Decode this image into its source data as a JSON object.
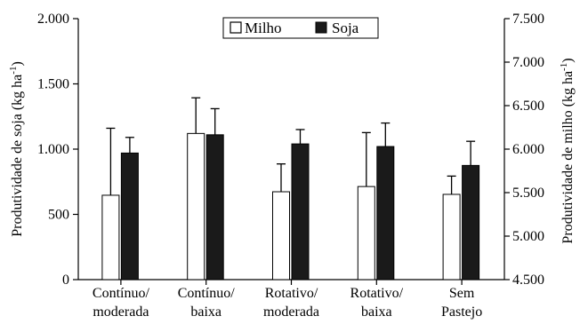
{
  "chart_data": {
    "type": "bar",
    "categories": [
      [
        "Contínuo/",
        "moderada"
      ],
      [
        "Contínuo/",
        "baixa"
      ],
      [
        "Rotativo/",
        "moderada"
      ],
      [
        "Rotativo/",
        "baixa"
      ],
      [
        "Sem",
        "Pastejo"
      ]
    ],
    "series": [
      {
        "name": "Milho",
        "axis": "right",
        "color": "#ffffff",
        "values": [
          5470,
          6180,
          5510,
          5570,
          5480
        ],
        "errors": [
          770,
          410,
          320,
          620,
          210
        ]
      },
      {
        "name": "Soja",
        "axis": "left",
        "color": "#1a1a1a",
        "values": [
          970,
          1110,
          1040,
          1020,
          875
        ],
        "errors": [
          120,
          200,
          110,
          180,
          185
        ]
      }
    ],
    "ylabel_left": "Produtividade de soja (kg ha",
    "ylabel_left_sup": "-1",
    "ylabel_left_end": ")",
    "ylabel_right": "Produtividade de milho (kg ha",
    "ylabel_right_sup": "-1",
    "ylabel_right_end": ")",
    "ylim_left": [
      0,
      2000
    ],
    "yticks_left": [
      0,
      500,
      1000,
      1500,
      2000
    ],
    "ytick_labels_left": [
      "0",
      "500",
      "1.000",
      "1.500",
      "2.000"
    ],
    "ylim_right": [
      4500,
      7500
    ],
    "yticks_right": [
      4500,
      5000,
      5500,
      6000,
      6500,
      7000,
      7500
    ],
    "ytick_labels_right": [
      "4.500",
      "5.000",
      "5.500",
      "6.000",
      "6.500",
      "7.000",
      "7.500"
    ],
    "legend_position": "top-center",
    "grid": false
  }
}
